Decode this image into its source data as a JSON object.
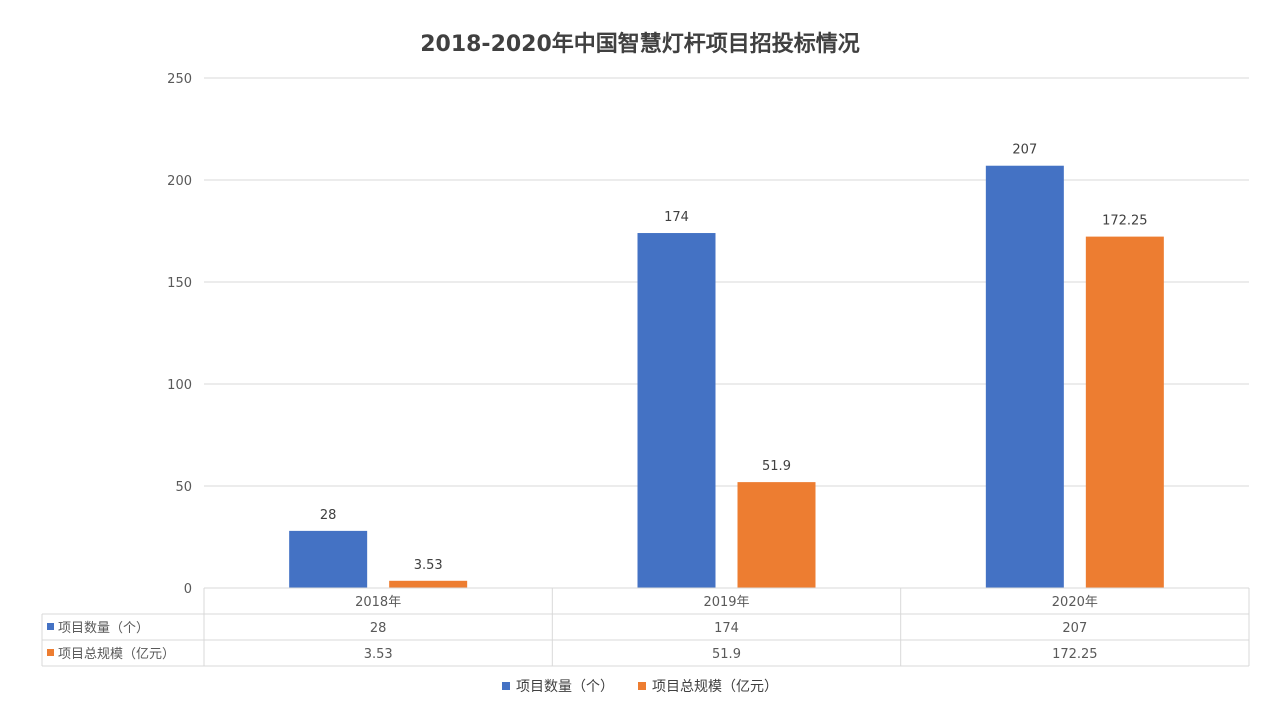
{
  "chart_data": {
    "type": "bar",
    "title": "2018-2020年中国智慧灯杆项目招投标情况",
    "categories": [
      "2018年",
      "2019年",
      "2020年"
    ],
    "series": [
      {
        "name": "项目数量（个）",
        "values": [
          28,
          174,
          207
        ],
        "labels": [
          "28",
          "174",
          "207"
        ],
        "color": "#4472C4"
      },
      {
        "name": "项目总规模（亿元）",
        "values": [
          3.53,
          51.9,
          172.25
        ],
        "labels": [
          "3.53",
          "51.9",
          "172.25"
        ],
        "color": "#ED7D31"
      }
    ],
    "ylim": [
      0,
      250
    ],
    "yticks": [
      "0",
      "50",
      "100",
      "150",
      "200",
      "250"
    ],
    "grid": true,
    "data_table": true,
    "legend_position": "bottom"
  }
}
